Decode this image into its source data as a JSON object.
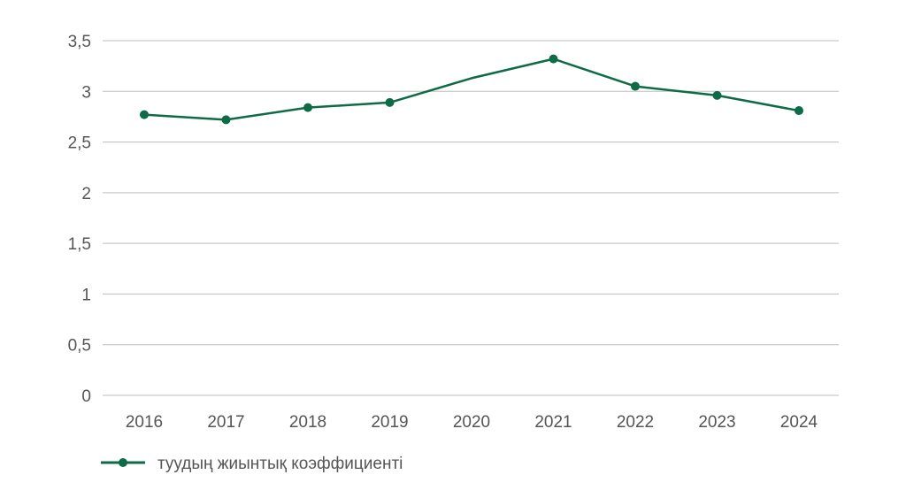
{
  "chart_data": {
    "type": "line",
    "title": "",
    "xlabel": "",
    "ylabel": "",
    "categories": [
      "2016",
      "2017",
      "2018",
      "2019",
      "2020",
      "2021",
      "2022",
      "2023",
      "2024"
    ],
    "series": [
      {
        "name": "туудың жиынтық коэффициенті",
        "values": [
          2.77,
          2.72,
          2.84,
          2.89,
          3.13,
          3.32,
          3.05,
          2.96,
          2.81
        ],
        "markers": [
          true,
          true,
          true,
          true,
          false,
          true,
          true,
          true,
          true
        ],
        "color": "#0d6b45"
      }
    ],
    "ylim": [
      0,
      3.5
    ],
    "yticks": [
      0,
      0.5,
      1,
      1.5,
      2,
      2.5,
      3,
      3.5
    ],
    "ytick_labels": [
      "0",
      "0,5",
      "1",
      "1,5",
      "2",
      "2,5",
      "3",
      "3,5"
    ],
    "grid": true,
    "grid_color": "#bdbdbd",
    "legend_position": "bottom-left"
  }
}
